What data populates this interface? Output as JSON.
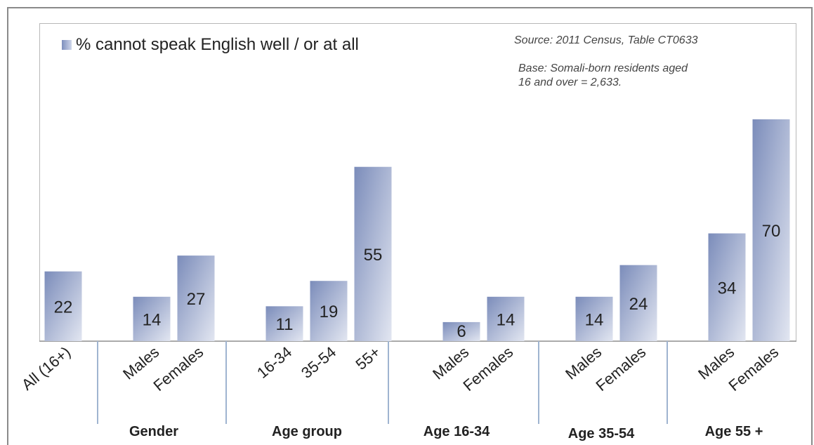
{
  "legend": {
    "label": "% cannot speak English well / or at all"
  },
  "source": "Source: 2011 Census, Table CT0633",
  "base_line1": "Base: Somali-born residents aged",
  "base_line2": "16 and over = 2,633.",
  "colors": {
    "bar_dark": "#7b8cba",
    "bar_light": "#e2e6f1",
    "divider": "#9fb4d0"
  },
  "chart_data": {
    "type": "bar",
    "ylim": [
      0,
      80
    ],
    "grid": false,
    "legend_position": "top-left",
    "series": [
      {
        "name": "% cannot speak English well / or at all",
        "values": [
          22,
          14,
          27,
          11,
          19,
          55,
          6,
          14,
          14,
          24,
          34,
          70
        ]
      }
    ],
    "categories": [
      "All (16+)",
      "Males",
      "Females",
      "16-34",
      "35-54",
      "55+",
      "Males",
      "Females",
      "Males",
      "Females",
      "Males",
      "Females"
    ],
    "groups": [
      {
        "label": "",
        "members": [
          0
        ]
      },
      {
        "label": "Gender",
        "members": [
          1,
          2
        ]
      },
      {
        "label": "Age group",
        "members": [
          3,
          4,
          5
        ]
      },
      {
        "label": "Age 16-34",
        "members": [
          6,
          7
        ]
      },
      {
        "label": "Age 35-54",
        "members": [
          8,
          9
        ]
      },
      {
        "label": "Age 55 +",
        "members": [
          10,
          11
        ]
      }
    ]
  }
}
